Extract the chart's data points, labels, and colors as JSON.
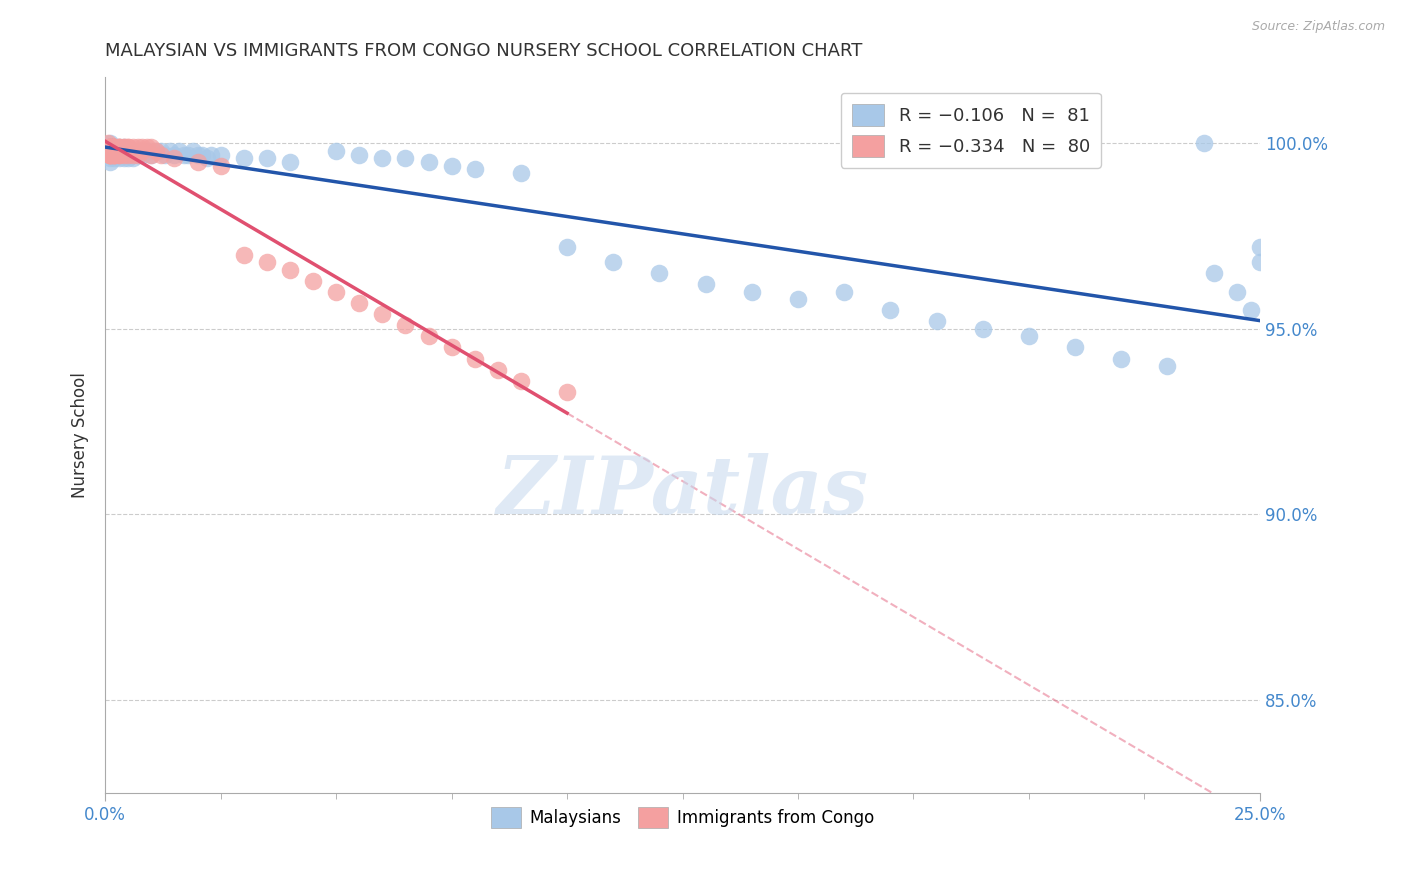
{
  "title": "MALAYSIAN VS IMMIGRANTS FROM CONGO NURSERY SCHOOL CORRELATION CHART",
  "source": "Source: ZipAtlas.com",
  "ylabel": "Nursery School",
  "ytick_labels": [
    "100.0%",
    "95.0%",
    "90.0%",
    "85.0%"
  ],
  "ytick_values": [
    1.0,
    0.95,
    0.9,
    0.85
  ],
  "xlim": [
    0.0,
    0.25
  ],
  "ylim": [
    0.825,
    1.018
  ],
  "legend_r1": "R = -0.106",
  "legend_n1": "N =  81",
  "legend_r2": "R = -0.334",
  "legend_n2": "N =  80",
  "blue_color": "#A8C8E8",
  "pink_color": "#F4A0A0",
  "blue_line_color": "#2255AA",
  "pink_line_color": "#E05070",
  "watermark": "ZIPatlas",
  "mal_x": [
    0.001,
    0.001,
    0.001,
    0.001,
    0.001,
    0.001,
    0.001,
    0.001,
    0.002,
    0.002,
    0.002,
    0.002,
    0.002,
    0.002,
    0.003,
    0.003,
    0.003,
    0.003,
    0.003,
    0.004,
    0.004,
    0.004,
    0.004,
    0.005,
    0.005,
    0.005,
    0.006,
    0.006,
    0.006,
    0.007,
    0.007,
    0.008,
    0.008,
    0.009,
    0.01,
    0.01,
    0.011,
    0.012,
    0.013,
    0.014,
    0.015,
    0.016,
    0.017,
    0.018,
    0.019,
    0.02,
    0.021,
    0.022,
    0.023,
    0.025,
    0.03,
    0.035,
    0.04,
    0.05,
    0.055,
    0.06,
    0.065,
    0.07,
    0.075,
    0.08,
    0.09,
    0.1,
    0.11,
    0.12,
    0.13,
    0.14,
    0.15,
    0.16,
    0.17,
    0.18,
    0.19,
    0.2,
    0.21,
    0.22,
    0.23,
    0.238,
    0.24,
    0.245,
    0.248,
    0.25,
    0.25
  ],
  "mal_y": [
    0.998,
    0.997,
    0.996,
    0.999,
    0.998,
    0.995,
    1.0,
    0.999,
    0.998,
    0.997,
    0.996,
    0.999,
    0.998,
    0.997,
    0.998,
    0.997,
    0.996,
    0.999,
    0.998,
    0.998,
    0.997,
    0.996,
    0.999,
    0.998,
    0.997,
    0.996,
    0.998,
    0.997,
    0.996,
    0.998,
    0.997,
    0.998,
    0.997,
    0.998,
    0.998,
    0.997,
    0.998,
    0.998,
    0.997,
    0.998,
    0.997,
    0.998,
    0.997,
    0.997,
    0.998,
    0.997,
    0.997,
    0.996,
    0.997,
    0.997,
    0.996,
    0.996,
    0.995,
    0.998,
    0.997,
    0.996,
    0.996,
    0.995,
    0.994,
    0.993,
    0.992,
    0.972,
    0.968,
    0.965,
    0.962,
    0.96,
    0.958,
    0.96,
    0.955,
    0.952,
    0.95,
    0.948,
    0.945,
    0.942,
    0.94,
    1.0,
    0.965,
    0.96,
    0.955,
    0.972,
    0.968
  ],
  "con_x": [
    0.0005,
    0.0005,
    0.0005,
    0.001,
    0.001,
    0.001,
    0.001,
    0.001,
    0.001,
    0.001,
    0.001,
    0.001,
    0.001,
    0.001,
    0.001,
    0.001,
    0.001,
    0.001,
    0.001,
    0.001,
    0.002,
    0.002,
    0.002,
    0.002,
    0.002,
    0.002,
    0.002,
    0.002,
    0.002,
    0.002,
    0.002,
    0.002,
    0.002,
    0.002,
    0.003,
    0.003,
    0.003,
    0.003,
    0.003,
    0.003,
    0.003,
    0.004,
    0.004,
    0.004,
    0.004,
    0.004,
    0.005,
    0.005,
    0.005,
    0.005,
    0.006,
    0.006,
    0.006,
    0.007,
    0.007,
    0.007,
    0.008,
    0.008,
    0.009,
    0.01,
    0.01,
    0.011,
    0.012,
    0.015,
    0.02,
    0.025,
    0.03,
    0.035,
    0.04,
    0.045,
    0.05,
    0.055,
    0.06,
    0.065,
    0.07,
    0.075,
    0.08,
    0.085,
    0.09,
    0.1
  ],
  "con_y": [
    0.999,
    0.998,
    1.0,
    0.999,
    0.998,
    0.997,
    0.999,
    0.998,
    0.997,
    0.999,
    0.998,
    0.997,
    0.999,
    0.998,
    0.997,
    0.999,
    0.998,
    0.997,
    0.999,
    0.998,
    0.999,
    0.998,
    0.997,
    0.999,
    0.998,
    0.997,
    0.999,
    0.998,
    0.997,
    0.999,
    0.998,
    0.997,
    0.999,
    0.998,
    0.999,
    0.998,
    0.997,
    0.999,
    0.998,
    0.997,
    0.999,
    0.999,
    0.998,
    0.997,
    0.999,
    0.998,
    0.999,
    0.998,
    0.997,
    0.999,
    0.999,
    0.998,
    0.997,
    0.999,
    0.998,
    0.997,
    0.999,
    0.998,
    0.999,
    0.999,
    0.997,
    0.998,
    0.997,
    0.996,
    0.995,
    0.994,
    0.97,
    0.968,
    0.966,
    0.963,
    0.96,
    0.957,
    0.954,
    0.951,
    0.948,
    0.945,
    0.942,
    0.939,
    0.936,
    0.933
  ]
}
